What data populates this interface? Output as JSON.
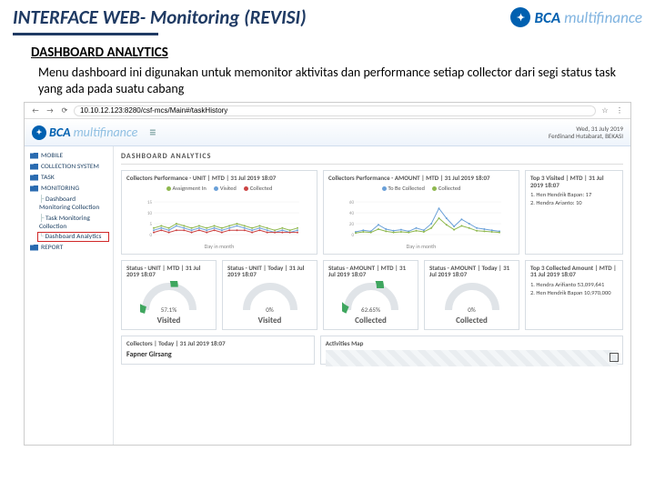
{
  "slide": {
    "title": "INTERFACE WEB- Monitoring (REVISI)",
    "section": "DASHBOARD ANALYTICS",
    "description": "Menu dashboard ini digunakan untuk memonitor aktivitas dan performance setiap collector dari segi status task yang ada pada suatu cabang",
    "brand_main": "BCA",
    "brand_sub": "multifinance"
  },
  "browser": {
    "url": "10.10.12.123:8280/csf-mcs/Main#/taskHistory",
    "back": "←",
    "forward": "→",
    "reload": "⟳",
    "star": "☆",
    "menu": "⋮"
  },
  "app": {
    "brand_main": "BCA",
    "brand_sub": "multifinance",
    "date": "Wed, 31 July 2019",
    "user": "Ferdinand Hutabarat, BEKASI"
  },
  "sidebar": {
    "items": [
      {
        "label": "MOBILE"
      },
      {
        "label": "COLLECTION SYSTEM"
      },
      {
        "label": "TASK"
      },
      {
        "label": "MONITORING",
        "children": [
          {
            "label": "Dashboard Monitoring Collection"
          },
          {
            "label": "Task Monitoring Collection"
          },
          {
            "label": "Dashboard Analytics",
            "highlight": true
          }
        ]
      },
      {
        "label": "REPORT"
      }
    ]
  },
  "crumb": "DASHBOARD ANALYTICS",
  "charts": {
    "perf_unit": {
      "title": "Collectors Performance - UNIT | MTD | 31 Jul 2019 18:07",
      "legend": [
        "Assignment In",
        "Visited",
        "Collected"
      ],
      "y_ticks": [
        0,
        5,
        10,
        15
      ],
      "x_label": "Day in month",
      "colors": [
        "#8fb84f",
        "#6aa0d8",
        "#c44"
      ],
      "series": [
        [
          3,
          4,
          3,
          5,
          4,
          3,
          4,
          3,
          4,
          3,
          4,
          5,
          4,
          3,
          4,
          3,
          2,
          3,
          2,
          3
        ],
        [
          2,
          3,
          2,
          4,
          3,
          2,
          3,
          2,
          3,
          2,
          3,
          4,
          3,
          2,
          3,
          2,
          1,
          2,
          1,
          2
        ],
        [
          1,
          2,
          1,
          2,
          2,
          1,
          2,
          1,
          2,
          1,
          2,
          2,
          2,
          1,
          2,
          1,
          1,
          1,
          1,
          1
        ]
      ]
    },
    "perf_amount": {
      "title": "Collectors Performance - AMOUNT | MTD | 31 Jul 2019 18:07",
      "legend": [
        "To Be Collected",
        "Collected"
      ],
      "y_ticks_label": [
        "0",
        "20,000,000",
        "40,000,000",
        "60,000,000"
      ],
      "x_label": "Day in month",
      "colors": [
        "#6aa0d8",
        "#8fb84f"
      ],
      "series": [
        [
          5,
          8,
          6,
          18,
          10,
          7,
          9,
          6,
          12,
          8,
          20,
          48,
          30,
          15,
          28,
          20,
          12,
          10,
          8,
          6
        ],
        [
          3,
          5,
          4,
          10,
          6,
          4,
          5,
          4,
          7,
          5,
          12,
          30,
          18,
          9,
          16,
          12,
          7,
          6,
          5,
          4
        ]
      ]
    },
    "top_visited": {
      "title": "Top 3 Visited | MTD | 31 Jul 2019 18:07",
      "items": [
        "1. Hen Hendrik Bapan: 17",
        "2. Hendra Arianto: 10"
      ]
    }
  },
  "gauges": [
    {
      "title": "Status - UNIT | MTD | 31 Jul 2019 18:07",
      "label": "Visited",
      "pct": "57.1%",
      "val": 0.571,
      "color": "#3fa65f"
    },
    {
      "title": "Status - UNIT | Today | 31 Jul 2019 18:07",
      "label": "Visited",
      "pct": "0%",
      "val": 0,
      "color": "#3fa65f"
    },
    {
      "title": "Status - AMOUNT | MTD | 31 Jul 2019 18:07",
      "label": "Collected",
      "pct": "62.65%",
      "val": 0.6265,
      "color": "#3fa65f"
    },
    {
      "title": "Status - AMOUNT | Today | 31 Jul 2019 18:07",
      "label": "Collected",
      "pct": "0%",
      "val": 0,
      "color": "#3fa65f"
    }
  ],
  "top_collected": {
    "title": "Top 3 Collected Amount | MTD | 31 Jul 2019 18:07",
    "items": [
      "1. Hendra Arifianto 53,099,641",
      "2. Hen Hendrik Bapan 10,970,000"
    ]
  },
  "bottom": {
    "collectors_title": "Collectors | Today | 31 Jul 2019 18:07",
    "collector_name": "Fapner Girsang",
    "activities_title": "Activities Map"
  }
}
